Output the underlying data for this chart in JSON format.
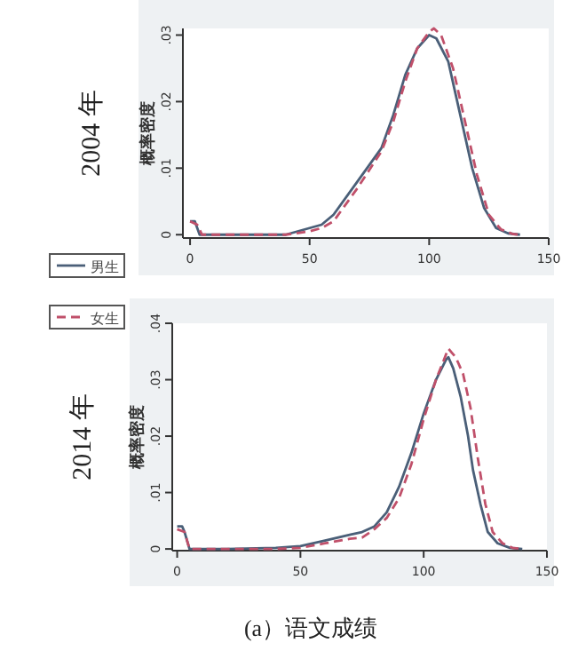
{
  "chart_data": [
    {
      "type": "line",
      "title": "2004 年",
      "ylabel": "概率密度",
      "xlim": [
        -3,
        150
      ],
      "ylim": [
        -0.0005,
        0.031
      ],
      "xticks": [
        0,
        50,
        100,
        150
      ],
      "yticks": [
        0,
        {
          "value": 0.01,
          "label": ".01"
        },
        {
          "value": 0.02,
          "label": ".02"
        },
        {
          "value": 0.03,
          "label": ".03"
        }
      ],
      "grid": false,
      "legend": "bottom left",
      "series": [
        {
          "name": "男生",
          "color": "#4a5f78",
          "line_style": "solid",
          "x": [
            0,
            2,
            4,
            10,
            40,
            50,
            55,
            60,
            70,
            80,
            85,
            90,
            95,
            100,
            103,
            108,
            113,
            118,
            123,
            128,
            133,
            138
          ],
          "values": [
            0.002,
            0.002,
            0,
            0,
            0,
            0.001,
            0.0015,
            0.003,
            0.008,
            0.013,
            0.018,
            0.024,
            0.028,
            0.03,
            0.0295,
            0.026,
            0.018,
            0.01,
            0.004,
            0.001,
            0.0002,
            0
          ]
        },
        {
          "color": "#c0506a",
          "line_style": "dashed",
          "x": [
            0,
            3,
            5,
            40,
            50,
            55,
            60,
            70,
            80,
            85,
            90,
            95,
            100,
            102,
            105,
            110,
            115,
            120,
            125,
            130,
            135,
            138
          ],
          "values": [
            0.002,
            0.0015,
            0,
            0,
            0.0005,
            0.001,
            0.002,
            0.007,
            0.0125,
            0.017,
            0.023,
            0.028,
            0.0305,
            0.031,
            0.03,
            0.025,
            0.017,
            0.009,
            0.003,
            0.0008,
            0.0001,
            0
          ]
        }
      ]
    },
    {
      "type": "line",
      "title": "2014 年",
      "ylabel": "概率密度",
      "xlim": [
        -2,
        150
      ],
      "ylim": [
        -0.0003,
        0.04
      ],
      "xticks": [
        0,
        50,
        100,
        150
      ],
      "yticks": [
        0,
        {
          "value": 0.01,
          "label": ".01"
        },
        {
          "value": 0.02,
          "label": ".02"
        },
        {
          "value": 0.03,
          "label": ".03"
        },
        {
          "value": 0.04,
          "label": ".04"
        }
      ],
      "grid": false,
      "legend": "top left",
      "annotations": [
        "(a）语文成绩"
      ],
      "series": [
        {
          "color": "#4a5f78",
          "line_style": "solid",
          "x": [
            0,
            2,
            3,
            5,
            20,
            40,
            50,
            60,
            70,
            75,
            80,
            85,
            90,
            95,
            100,
            105,
            109,
            110,
            112,
            115,
            118,
            120,
            123,
            126,
            130,
            135,
            140
          ],
          "values": [
            0.004,
            0.004,
            0.003,
            0,
            0,
            0.0002,
            0.0005,
            0.0015,
            0.0025,
            0.003,
            0.004,
            0.0065,
            0.011,
            0.017,
            0.024,
            0.03,
            0.0335,
            0.034,
            0.032,
            0.027,
            0.02,
            0.014,
            0.008,
            0.003,
            0.001,
            0.0002,
            0
          ]
        },
        {
          "name": "女生",
          "color": "#c0506a",
          "line_style": "dashed",
          "x": [
            0,
            3,
            5,
            40,
            50,
            60,
            70,
            75,
            80,
            85,
            90,
            95,
            100,
            105,
            110,
            113,
            116,
            119,
            122,
            125,
            128,
            132,
            136,
            140
          ],
          "values": [
            0.0035,
            0.003,
            0,
            0,
            0.0002,
            0.001,
            0.0018,
            0.002,
            0.0035,
            0.0055,
            0.009,
            0.015,
            0.023,
            0.03,
            0.0355,
            0.034,
            0.031,
            0.025,
            0.016,
            0.008,
            0.003,
            0.001,
            0.0002,
            0
          ]
        }
      ]
    }
  ]
}
